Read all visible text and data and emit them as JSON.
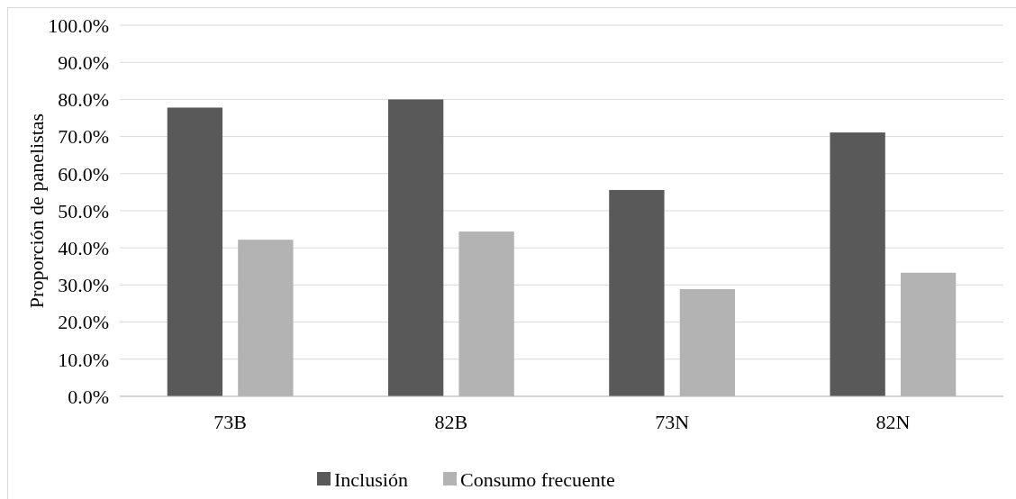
{
  "chart_data": {
    "type": "bar",
    "ylabel": "Proporción de panelistas",
    "categories": [
      "73B",
      "82B",
      "73N",
      "82N"
    ],
    "series": [
      {
        "name": "Inclusión",
        "color": "#595959",
        "values": [
          77.8,
          80.0,
          55.6,
          71.1
        ]
      },
      {
        "name": "Consumo frecuente",
        "color": "#b3b3b3",
        "values": [
          42.2,
          44.4,
          28.9,
          33.3
        ]
      }
    ],
    "ylim": [
      0,
      100
    ],
    "yticks": [
      {
        "value": 0,
        "label": "0.0%"
      },
      {
        "value": 10,
        "label": "10.0%"
      },
      {
        "value": 20,
        "label": "20.0%"
      },
      {
        "value": 30,
        "label": "30.0%"
      },
      {
        "value": 40,
        "label": "40.0%"
      },
      {
        "value": 50,
        "label": "50.0%"
      },
      {
        "value": 60,
        "label": "60.0%"
      },
      {
        "value": 70,
        "label": "70.0%"
      },
      {
        "value": 80,
        "label": "80.0%"
      },
      {
        "value": 90,
        "label": "90.0%"
      },
      {
        "value": 100,
        "label": "100.0%"
      }
    ],
    "grid": "y",
    "legend": "bottom"
  }
}
